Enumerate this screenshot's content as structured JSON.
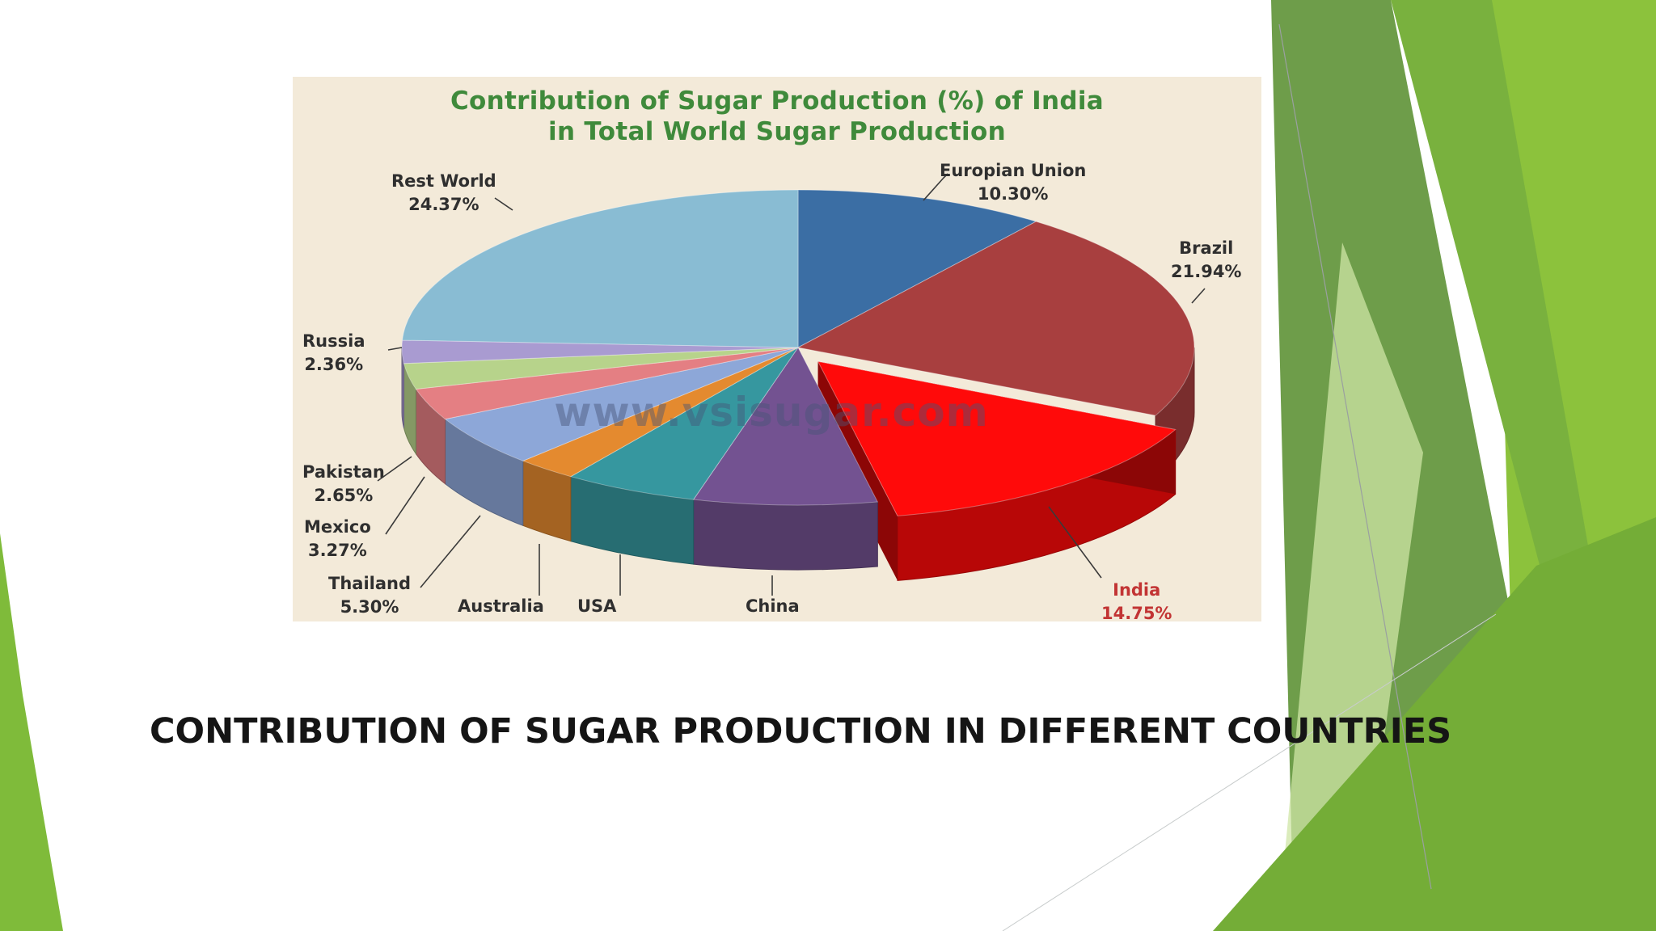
{
  "slide": {
    "caption": "CONTRIBUTION OF SUGAR PRODUCTION IN DIFFERENT COUNTRIES"
  },
  "chart_data": {
    "type": "pie",
    "title": "Contribution of Sugar Production (%) of India in Total World Sugar Production",
    "title_lines": [
      "Contribution of Sugar Production (%) of India",
      "in Total World Sugar Production"
    ],
    "watermark": "www.vsisugar.com",
    "unit": "%",
    "slices": [
      {
        "label": "Europian Union",
        "value_label": "10.30%",
        "value": 10.3,
        "color": "#3b6ea4"
      },
      {
        "label": "Brazil",
        "value_label": "21.94%",
        "value": 21.94,
        "color": "#a83f3f"
      },
      {
        "label": "India",
        "value_label": "14.75%",
        "value": 14.75,
        "color": "#ff0a0a",
        "exploded": true
      },
      {
        "label": "China",
        "value_label": "",
        "value": 7.5,
        "color": "#735291"
      },
      {
        "label": "USA",
        "value_label": "",
        "value": 5.5,
        "color": "#36979f"
      },
      {
        "label": "Australia",
        "value_label": "",
        "value": 2.5,
        "color": "#e48a2f"
      },
      {
        "label": "Thailand",
        "value_label": "5.30%",
        "value": 5.3,
        "color": "#8da7d8"
      },
      {
        "label": "Mexico",
        "value_label": "3.27%",
        "value": 3.27,
        "color": "#e47f83"
      },
      {
        "label": "Pakistan",
        "value_label": "2.65%",
        "value": 2.65,
        "color": "#b7d38b"
      },
      {
        "label": "Russia",
        "value_label": "2.36%",
        "value": 2.36,
        "color": "#a99bd1"
      },
      {
        "label": "Rest World",
        "value_label": "24.37%",
        "value": 24.37,
        "color": "#89bcd3"
      }
    ],
    "legend": "none",
    "style": "3d-pie"
  }
}
